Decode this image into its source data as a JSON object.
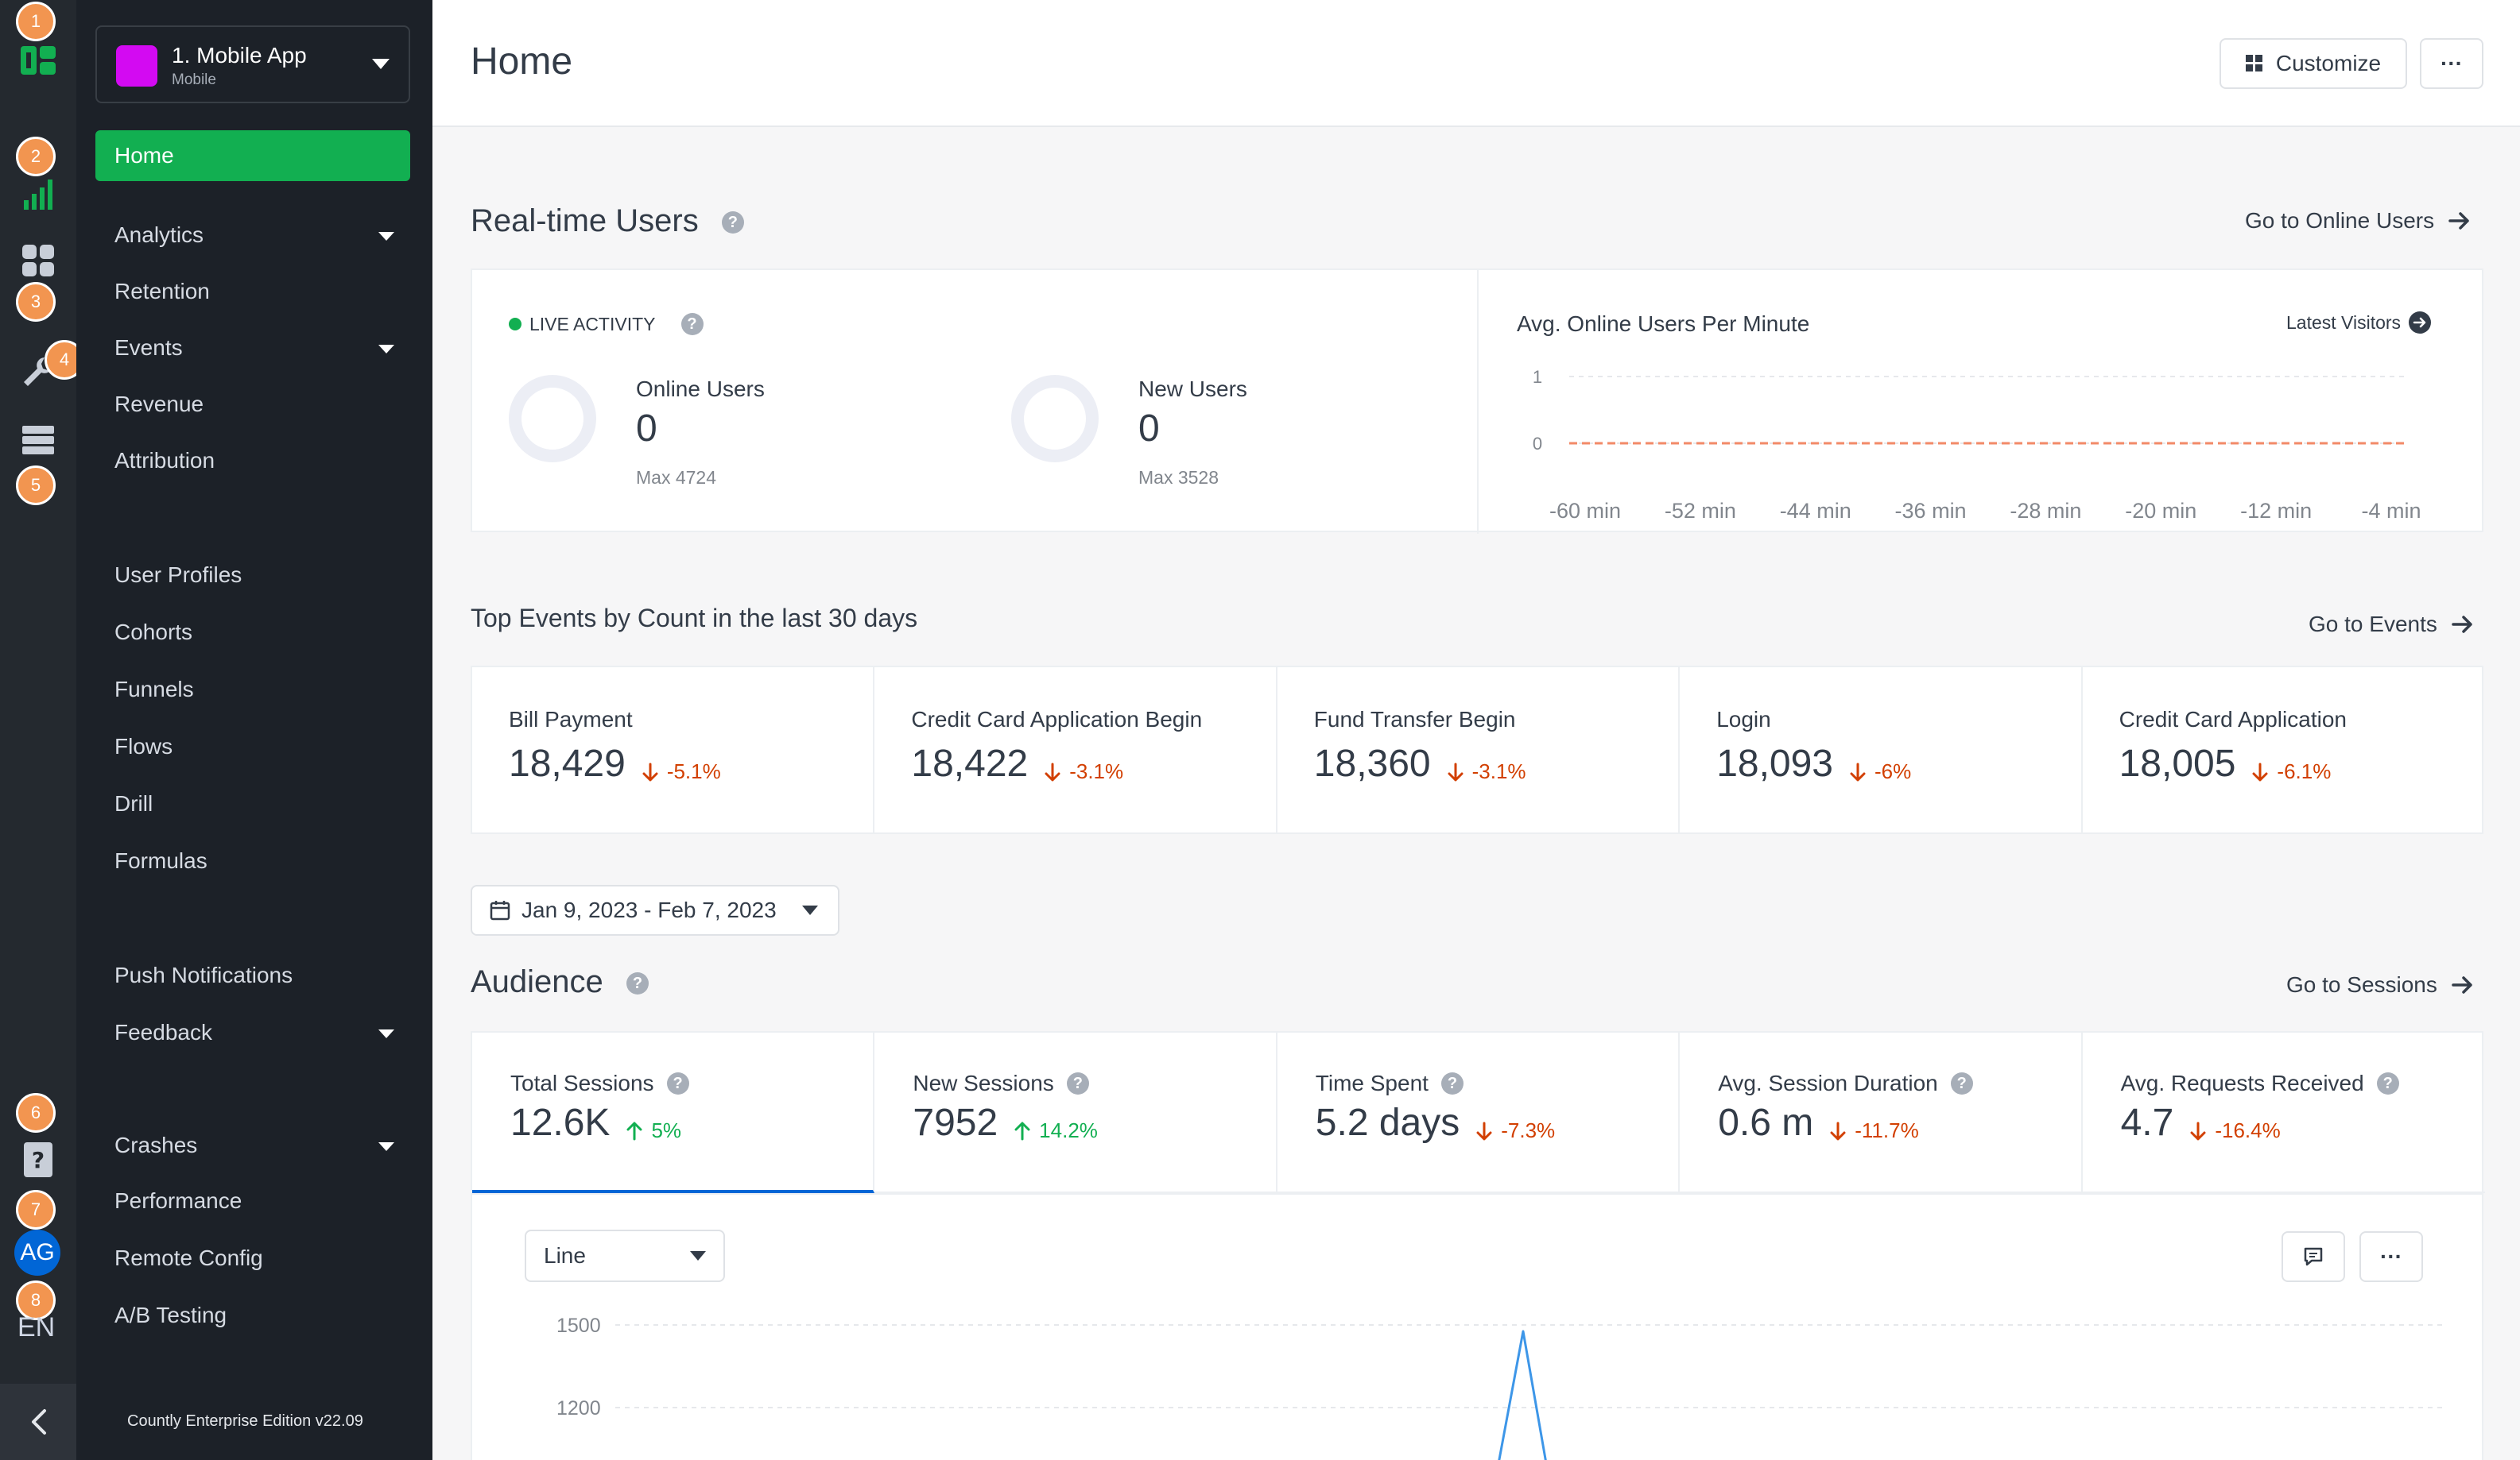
{
  "rail": {
    "badges": [
      "1",
      "2",
      "3",
      "4",
      "5",
      "6",
      "7",
      "8"
    ],
    "avatar": "AG",
    "language": "EN",
    "icons": [
      "countly-logo-icon",
      "dashboard-chart-icon",
      "apps-grid-icon",
      "wrench-icon",
      "database-icon",
      "help-doc-icon",
      "chevron-left-icon"
    ]
  },
  "sidebar": {
    "app_name": "1. Mobile App",
    "app_type": "Mobile",
    "app_color": "#d30af2",
    "home": "Home",
    "items": [
      {
        "label": "Analytics"
      },
      {
        "label": "Retention"
      },
      {
        "label": "Events"
      },
      {
        "label": "Revenue"
      },
      {
        "label": "Attribution"
      },
      {
        "label": "User Profiles"
      },
      {
        "label": "Cohorts"
      },
      {
        "label": "Funnels"
      },
      {
        "label": "Flows"
      },
      {
        "label": "Drill"
      },
      {
        "label": "Formulas"
      },
      {
        "label": "Push Notifications"
      },
      {
        "label": "Feedback"
      },
      {
        "label": "Crashes"
      },
      {
        "label": "Performance"
      },
      {
        "label": "Remote Config"
      },
      {
        "label": "A/B Testing"
      }
    ],
    "edition": "Countly Enterprise Edition v22.09"
  },
  "header": {
    "title": "Home",
    "customize": "Customize",
    "more": "···"
  },
  "realtime": {
    "title": "Real-time Users",
    "goto": "Go to Online Users",
    "live_label": "LIVE ACTIVITY",
    "online_label": "Online Users",
    "online_value": "0",
    "online_max": "Max 4724",
    "new_label": "New Users",
    "new_value": "0",
    "new_max": "Max 3528",
    "chart_title": "Avg. Online Users Per Minute",
    "latest_visitors": "Latest Visitors"
  },
  "chart_data": [
    {
      "type": "line",
      "title": "Avg. Online Users Per Minute",
      "x": [
        "-60 min",
        "-52 min",
        "-44 min",
        "-36 min",
        "-28 min",
        "-20 min",
        "-12 min",
        "-4 min"
      ],
      "y_ticks": [
        "1",
        "0"
      ],
      "ylim": [
        0,
        1
      ],
      "series": [
        {
          "values": [
            0,
            0,
            0,
            0,
            0,
            0,
            0,
            0
          ],
          "color": "#f28a68"
        }
      ],
      "grid": true
    },
    {
      "type": "line",
      "y_ticks": [
        "1500",
        "1200"
      ],
      "series": [
        {
          "color": "#3d96e8"
        }
      ],
      "grid": true
    }
  ],
  "events": {
    "title": "Top Events by Count in the last 30 days",
    "goto": "Go to Events",
    "items": [
      {
        "name": "Bill Payment",
        "value": "18,429",
        "change": "-5.1%"
      },
      {
        "name": "Credit Card Application Begin",
        "value": "18,422",
        "change": "-3.1%"
      },
      {
        "name": "Fund Transfer Begin",
        "value": "18,360",
        "change": "-3.1%"
      },
      {
        "name": "Login",
        "value": "18,093",
        "change": "-6%"
      },
      {
        "name": "Credit Card Application",
        "value": "18,005",
        "change": "-6.1%"
      }
    ]
  },
  "date_range": "Jan 9, 2023 - Feb 7, 2023",
  "audience": {
    "title": "Audience",
    "goto": "Go to Sessions",
    "metrics": [
      {
        "label": "Total Sessions",
        "value": "12.6K",
        "change": "5%",
        "direction": "up"
      },
      {
        "label": "New Sessions",
        "value": "7952",
        "change": "14.2%",
        "direction": "up"
      },
      {
        "label": "Time Spent",
        "value": "5.2 days",
        "change": "-7.3%",
        "direction": "down"
      },
      {
        "label": "Avg. Session Duration",
        "value": "0.6 m",
        "change": "-11.7%",
        "direction": "down"
      },
      {
        "label": "Avg. Requests Received",
        "value": "4.7",
        "change": "-16.4%",
        "direction": "down"
      }
    ],
    "chart_type": "Line",
    "more": "···"
  },
  "colors": {
    "accent_green": "#12af51",
    "rail_bg": "#24292f",
    "sidebar_bg": "#1c2128",
    "badge": "#f29550",
    "down": "#d23f00",
    "up": "#12af51",
    "line_blue": "#3d96e8"
  }
}
